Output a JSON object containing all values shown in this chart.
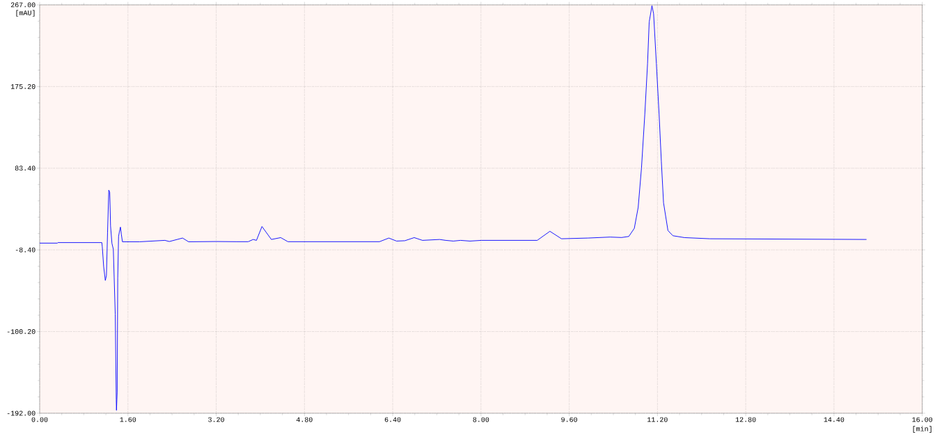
{
  "chart_data": {
    "type": "line",
    "xlabel": "[min]",
    "ylabel": "[mAU]",
    "x": [
      0,
      0.32,
      0.33,
      1.127,
      1.135,
      1.16,
      1.19,
      1.21,
      1.23,
      1.253,
      1.27,
      1.285,
      1.31,
      1.335,
      1.35,
      1.37,
      1.388,
      1.392,
      1.405,
      1.415,
      1.43,
      1.445,
      1.464,
      1.48,
      1.5,
      1.81,
      2.27,
      2.35,
      2.59,
      2.7,
      3.2,
      3.571,
      3.78,
      3.87,
      3.93,
      4.03,
      4.2,
      4.37,
      4.5,
      6.16,
      6.33,
      6.47,
      6.62,
      6.79,
      6.94,
      7.25,
      7.36,
      7.5,
      7.63,
      7.8,
      8.01,
      9.02,
      9.25,
      9.46,
      9.94,
      10.34,
      10.55,
      10.68,
      10.78,
      10.85,
      10.91,
      10.97,
      11.02,
      11.05,
      11.1,
      11.13,
      11.18,
      11.23,
      11.27,
      11.31,
      11.39,
      11.48,
      11.69,
      12.15,
      14.99
    ],
    "series": [
      {
        "color": "#0000ff",
        "values": [
          -0.8,
          -0.8,
          -0.2,
          -0.2,
          -5.0,
          -27.2,
          -42.8,
          -37.3,
          10.6,
          58.8,
          56.3,
          18.4,
          -1.1,
          -7.6,
          -38.9,
          -80.6,
          -177,
          -188.7,
          -168,
          -40.2,
          6.7,
          11.9,
          17.2,
          9.3,
          0.7,
          0.7,
          2.3,
          1.0,
          4.9,
          0.7,
          1.0,
          0.8,
          0.8,
          3.3,
          2.3,
          17.9,
          3.3,
          5.4,
          0.8,
          0.8,
          4.9,
          1.5,
          1.9,
          5.4,
          2.3,
          3.3,
          2.3,
          1.5,
          2.3,
          1.5,
          2.3,
          2.3,
          12.5,
          4.1,
          4.9,
          6.0,
          5.5,
          6.7,
          15.8,
          39.3,
          83.6,
          143.5,
          200.9,
          247.8,
          266.0,
          257,
          200.9,
          143.5,
          91.4,
          44.5,
          13.3,
          7.5,
          5.4,
          4.1,
          3.3
        ]
      }
    ],
    "xlim": [
      0,
      16
    ],
    "xticks": [
      {
        "value": 0,
        "label": "0.00"
      },
      {
        "value": 1.6,
        "label": "1.60"
      },
      {
        "value": 3.2,
        "label": "3.20"
      },
      {
        "value": 4.8,
        "label": "4.80"
      },
      {
        "value": 6.4,
        "label": "6.40"
      },
      {
        "value": 8,
        "label": "8.00"
      },
      {
        "value": 9.6,
        "label": "9.60"
      },
      {
        "value": 11.2,
        "label": "11.20"
      },
      {
        "value": 12.8,
        "label": "12.80"
      },
      {
        "value": 14.4,
        "label": "14.40"
      },
      {
        "value": 16,
        "label": "16.00"
      }
    ],
    "ylim": [
      -192,
      267
    ],
    "yticks": [
      {
        "value": -192,
        "label": "-192.00"
      },
      {
        "value": -100.2,
        "label": "-100.20"
      },
      {
        "value": -8.4,
        "label": "-8.40"
      },
      {
        "value": 83.4,
        "label": "83.40"
      },
      {
        "value": 175.2,
        "label": "175.20"
      },
      {
        "value": 267,
        "label": "267.00"
      }
    ],
    "grid": true,
    "marker": "none",
    "line_style": "solid"
  }
}
